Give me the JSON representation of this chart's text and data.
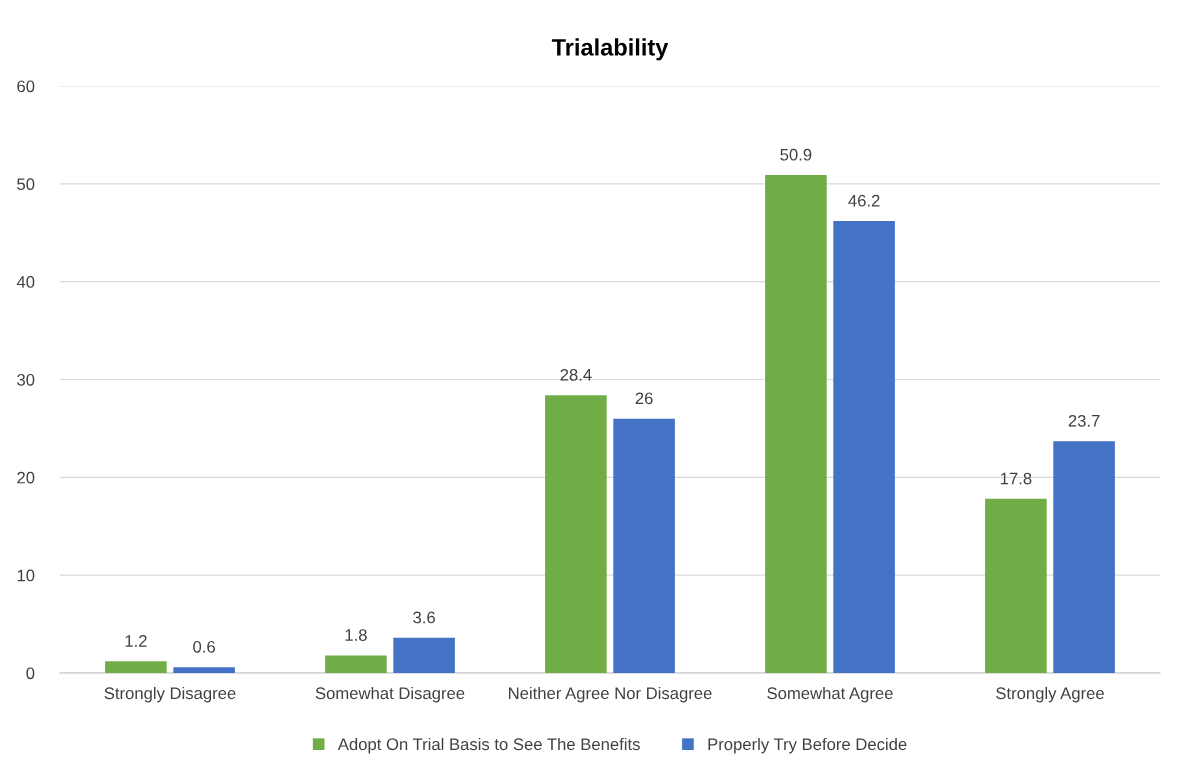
{
  "chart_data": {
    "type": "bar",
    "title": "Trialability",
    "categories": [
      "Strongly Disagree",
      "Somewhat Disagree",
      "Neither Agree Nor Disagree",
      "Somewhat Agree",
      "Strongly Agree"
    ],
    "series": [
      {
        "name": "Adopt On Trial Basis to See The Benefits",
        "color": "#70ad47",
        "values": [
          1.2,
          1.8,
          28.4,
          50.9,
          17.8
        ]
      },
      {
        "name": "Properly Try Before Decide",
        "color": "#4472c4",
        "values": [
          0.6,
          3.6,
          26,
          46.2,
          23.7
        ]
      }
    ],
    "ylim": [
      0,
      60
    ],
    "yticks": [
      0,
      10,
      20,
      30,
      40,
      50,
      60
    ],
    "grid": "y",
    "legend": "bottom",
    "data_labels": true
  }
}
